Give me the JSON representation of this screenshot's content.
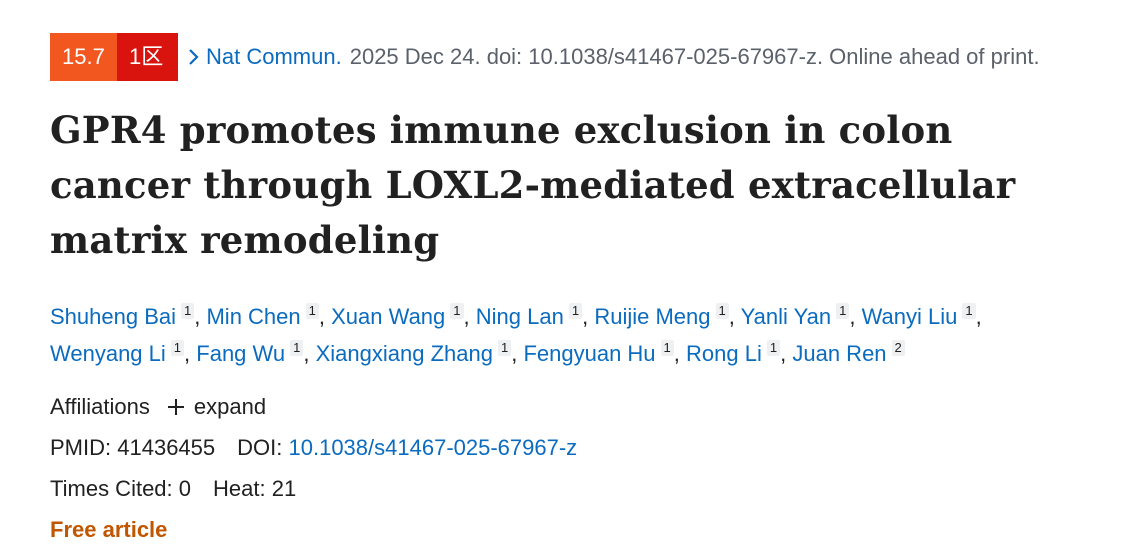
{
  "badges": {
    "impact": "15.7",
    "zone": "1区"
  },
  "journal": "Nat Commun.",
  "citation": "2025 Dec 24. doi: 10.1038/s41467-025-67967-z. Online ahead of print.",
  "title": "GPR4 promotes immune exclusion in colon cancer through LOXL2-mediated extracellular matrix remodeling",
  "authors": [
    {
      "name": "Shuheng Bai",
      "aff": "1"
    },
    {
      "name": "Min Chen",
      "aff": "1"
    },
    {
      "name": "Xuan Wang",
      "aff": "1"
    },
    {
      "name": "Ning Lan",
      "aff": "1"
    },
    {
      "name": "Ruijie Meng",
      "aff": "1"
    },
    {
      "name": "Yanli Yan",
      "aff": "1"
    },
    {
      "name": "Wanyi Liu",
      "aff": "1"
    },
    {
      "name": "Wenyang Li",
      "aff": "1"
    },
    {
      "name": "Fang Wu",
      "aff": "1"
    },
    {
      "name": "Xiangxiang Zhang",
      "aff": "1"
    },
    {
      "name": "Fengyuan Hu",
      "aff": "1"
    },
    {
      "name": "Rong Li",
      "aff": "1"
    },
    {
      "name": "Juan Ren",
      "aff": "2"
    }
  ],
  "affiliations": {
    "label": "Affiliations",
    "toggle": "expand"
  },
  "pmid": {
    "label": "PMID:",
    "value": "41436455"
  },
  "doi": {
    "label": "DOI:",
    "value": "10.1038/s41467-025-67967-z"
  },
  "times_cited": {
    "label": "Times Cited:",
    "value": "0"
  },
  "heat": {
    "label": "Heat:",
    "value": "21"
  },
  "free": "Free article"
}
